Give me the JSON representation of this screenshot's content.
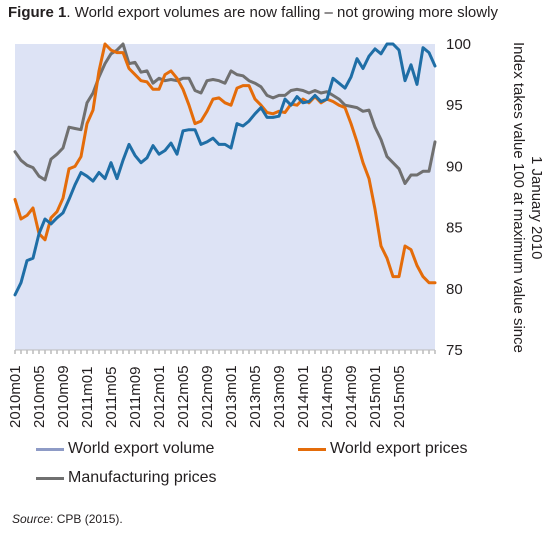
{
  "figure": {
    "label": "Figure 1",
    "title": ". World export volumes are now falling – not growing more slowly"
  },
  "source": {
    "label": "Source",
    "text": ": CPB (2015)."
  },
  "chart_data": {
    "type": "line",
    "title": "World export volumes are now falling – not growing more slowly",
    "xlabel": "",
    "ylabel": "Index takes value 100 at maximum value since 1 January 2010",
    "ylim": [
      75,
      100
    ],
    "yticks": [
      75,
      80,
      85,
      90,
      95,
      100
    ],
    "grid": false,
    "legend_position": "bottom",
    "background": "#dde3f5",
    "x_tick_labels": [
      "2010m01",
      "2010m05",
      "2010m09",
      "2011m01",
      "2011m05",
      "2011m09",
      "2012m01",
      "2012m05",
      "2012m09",
      "2013m01",
      "2013m05",
      "2013m09",
      "2014m01",
      "2014m05",
      "2014m09",
      "2015m01",
      "2015m05"
    ],
    "x_start": "2010m01",
    "x_end": "2015m09",
    "series": [
      {
        "name": "World export volume",
        "color": "#1f6ea6",
        "values": [
          79.5,
          80.5,
          82.3,
          82.5,
          84.5,
          85.7,
          85.3,
          85.8,
          86.2,
          87.3,
          88.5,
          89.5,
          89.2,
          88.8,
          89.5,
          89.0,
          90.3,
          89.0,
          90.5,
          91.8,
          90.9,
          90.3,
          90.7,
          91.7,
          91.0,
          91.3,
          91.9,
          91.0,
          92.9,
          93.0,
          93.0,
          91.8,
          92.0,
          92.3,
          91.8,
          91.8,
          91.5,
          93.5,
          93.3,
          93.7,
          94.3,
          94.8,
          94.0,
          94.0,
          94.1,
          95.5,
          95.0,
          95.7,
          95.2,
          95.3,
          95.8,
          95.3,
          95.5,
          97.2,
          96.8,
          96.4,
          97.3,
          98.8,
          98.0,
          99.0,
          99.6,
          99.2,
          100.0,
          100.0,
          99.5,
          97.0,
          98.3,
          96.7,
          99.7,
          99.3,
          98.2
        ]
      },
      {
        "name": "World export prices",
        "color": "#e46c0a",
        "values": [
          87.3,
          85.7,
          86.0,
          86.6,
          84.5,
          84.0,
          85.8,
          86.3,
          87.4,
          89.8,
          90.0,
          90.8,
          93.5,
          94.6,
          97.8,
          100.0,
          99.5,
          99.3,
          99.3,
          98.0,
          97.5,
          97.0,
          96.9,
          96.3,
          96.3,
          97.5,
          97.8,
          97.2,
          96.3,
          95.0,
          93.5,
          93.7,
          94.5,
          95.5,
          95.6,
          95.2,
          95.0,
          96.4,
          96.6,
          96.6,
          95.5,
          95.0,
          94.4,
          94.3,
          94.5,
          94.4,
          95.1,
          95.0,
          95.5,
          95.2,
          95.7,
          95.2,
          95.5,
          95.3,
          95.0,
          94.8,
          93.5,
          92.0,
          90.3,
          89.0,
          86.5,
          83.5,
          82.5,
          81.0,
          81.0,
          83.5,
          83.2,
          81.9,
          81.0,
          80.5,
          80.5
        ]
      },
      {
        "name": "Manufacturing prices",
        "color": "#707070",
        "values": [
          91.2,
          90.5,
          90.1,
          89.9,
          89.2,
          88.9,
          90.6,
          91.0,
          91.5,
          93.2,
          93.1,
          93.0,
          95.2,
          96.0,
          97.3,
          98.4,
          99.2,
          99.5,
          100.0,
          98.4,
          98.5,
          97.7,
          97.8,
          96.8,
          97.2,
          97.0,
          97.1,
          97.0,
          97.2,
          97.2,
          96.2,
          96.0,
          97.0,
          97.1,
          97.0,
          96.8,
          97.8,
          97.5,
          97.4,
          97.0,
          96.8,
          96.5,
          95.8,
          95.6,
          95.8,
          95.8,
          96.2,
          96.3,
          96.2,
          96.0,
          96.2,
          96.0,
          96.1,
          95.8,
          95.5,
          95.0,
          94.9,
          94.8,
          94.5,
          94.6,
          93.2,
          92.2,
          90.8,
          90.3,
          89.8,
          88.6,
          89.3,
          89.3,
          89.6,
          89.6,
          92.0
        ]
      }
    ]
  }
}
